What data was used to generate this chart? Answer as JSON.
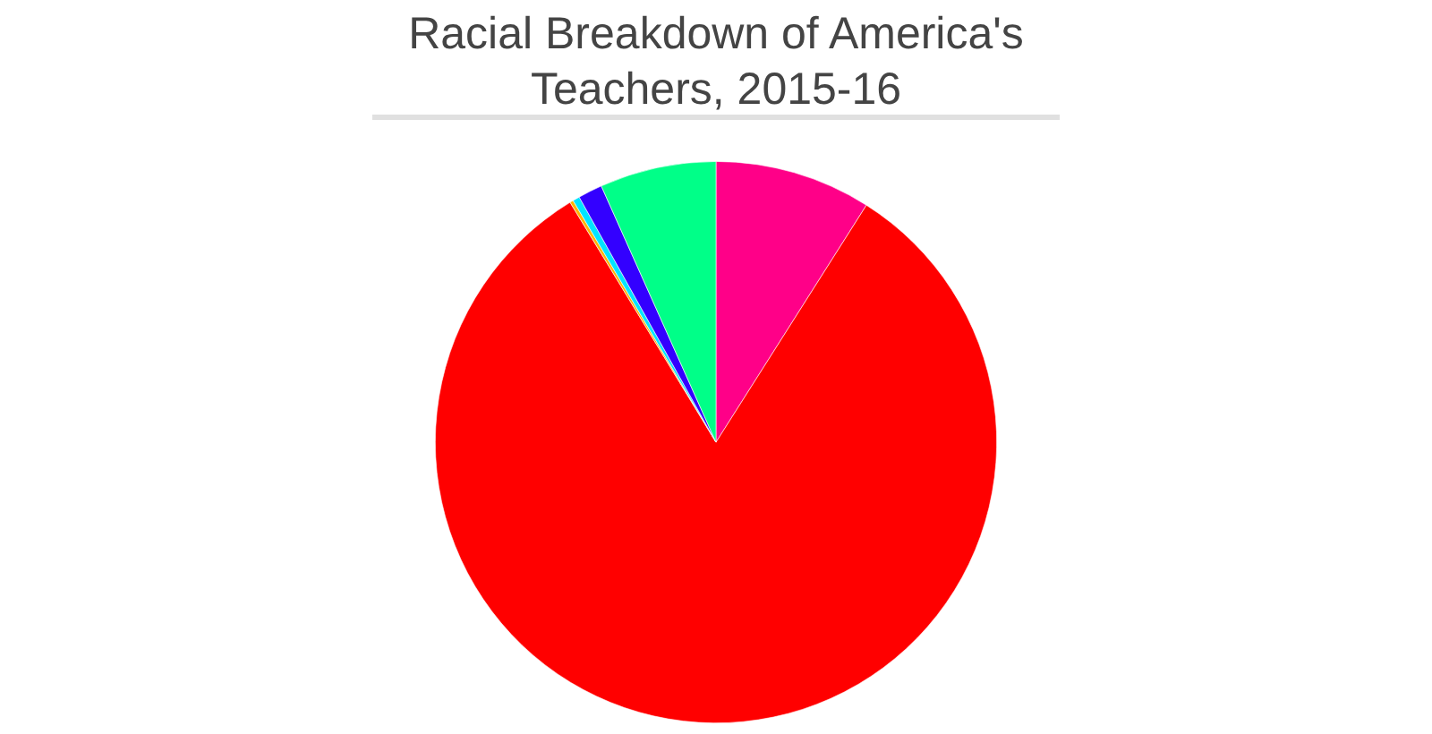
{
  "chart_data": {
    "type": "pie",
    "title": "Racial Breakdown of America's Teachers, 2015-16",
    "categories": [
      null,
      null,
      null,
      null,
      null,
      null
    ],
    "values": [
      9.0,
      82.3,
      0.2,
      0.4,
      1.4,
      6.7
    ],
    "colors": [
      "#ff0088",
      "#ff0000",
      "#ffb400",
      "#00e5ff",
      "#3300ff",
      "#00ff88"
    ],
    "legend": false
  }
}
